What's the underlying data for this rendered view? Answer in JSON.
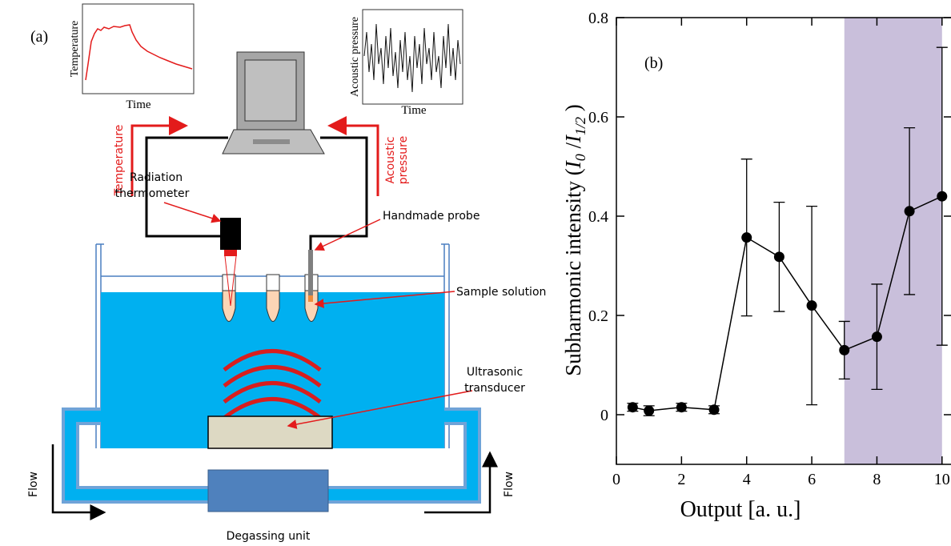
{
  "panel_a": {
    "label": "(a)",
    "inset_temperature": {
      "ylabel": "Temperature",
      "xlabel": "Time"
    },
    "inset_acoustic": {
      "ylabel": "Acoustic pressure",
      "xlabel": "Time"
    },
    "signal_labels": {
      "temperature": "Temperature",
      "acoustic": [
        "Acoustic",
        "pressure"
      ]
    },
    "radiation_thermometer": [
      "Radiation",
      "thermometer"
    ],
    "handmade_probe": "Handmade probe",
    "sample_solution": "Sample solution",
    "ultrasonic_transducer": [
      "Ultrasonic",
      "transducer"
    ],
    "flow_left": "Flow",
    "flow_right": "Flow",
    "degassing_unit": "Degassing unit"
  },
  "chart_data": {
    "type": "line",
    "panel_label": "(b)",
    "xlabel": "Output [a. u.]",
    "ylabel": [
      "Subharmonic intensity (",
      "I",
      "0",
      " /",
      "I",
      "1/2",
      " )"
    ],
    "x": [
      0.5,
      1,
      2,
      3,
      4,
      5,
      6,
      7,
      8,
      9,
      10
    ],
    "series": [
      {
        "color": "#000000",
        "values": [
          0.015,
          0.008,
          0.015,
          0.01,
          0.357,
          0.318,
          0.22,
          0.13,
          0.157,
          0.41,
          0.44
        ],
        "errors": [
          0.008,
          0.01,
          0.008,
          0.008,
          0.158,
          0.11,
          0.2,
          0.058,
          0.106,
          0.168,
          0.3
        ]
      }
    ],
    "xlim": [
      0,
      10.3
    ],
    "ylim": [
      -0.1,
      0.8
    ],
    "xticks": [
      0,
      2,
      4,
      6,
      8,
      10
    ],
    "yticks": [
      0,
      0.2,
      0.4,
      0.6,
      0.8
    ],
    "shaded_region": [
      7,
      10
    ],
    "shade_color": "#c9bfdb"
  }
}
